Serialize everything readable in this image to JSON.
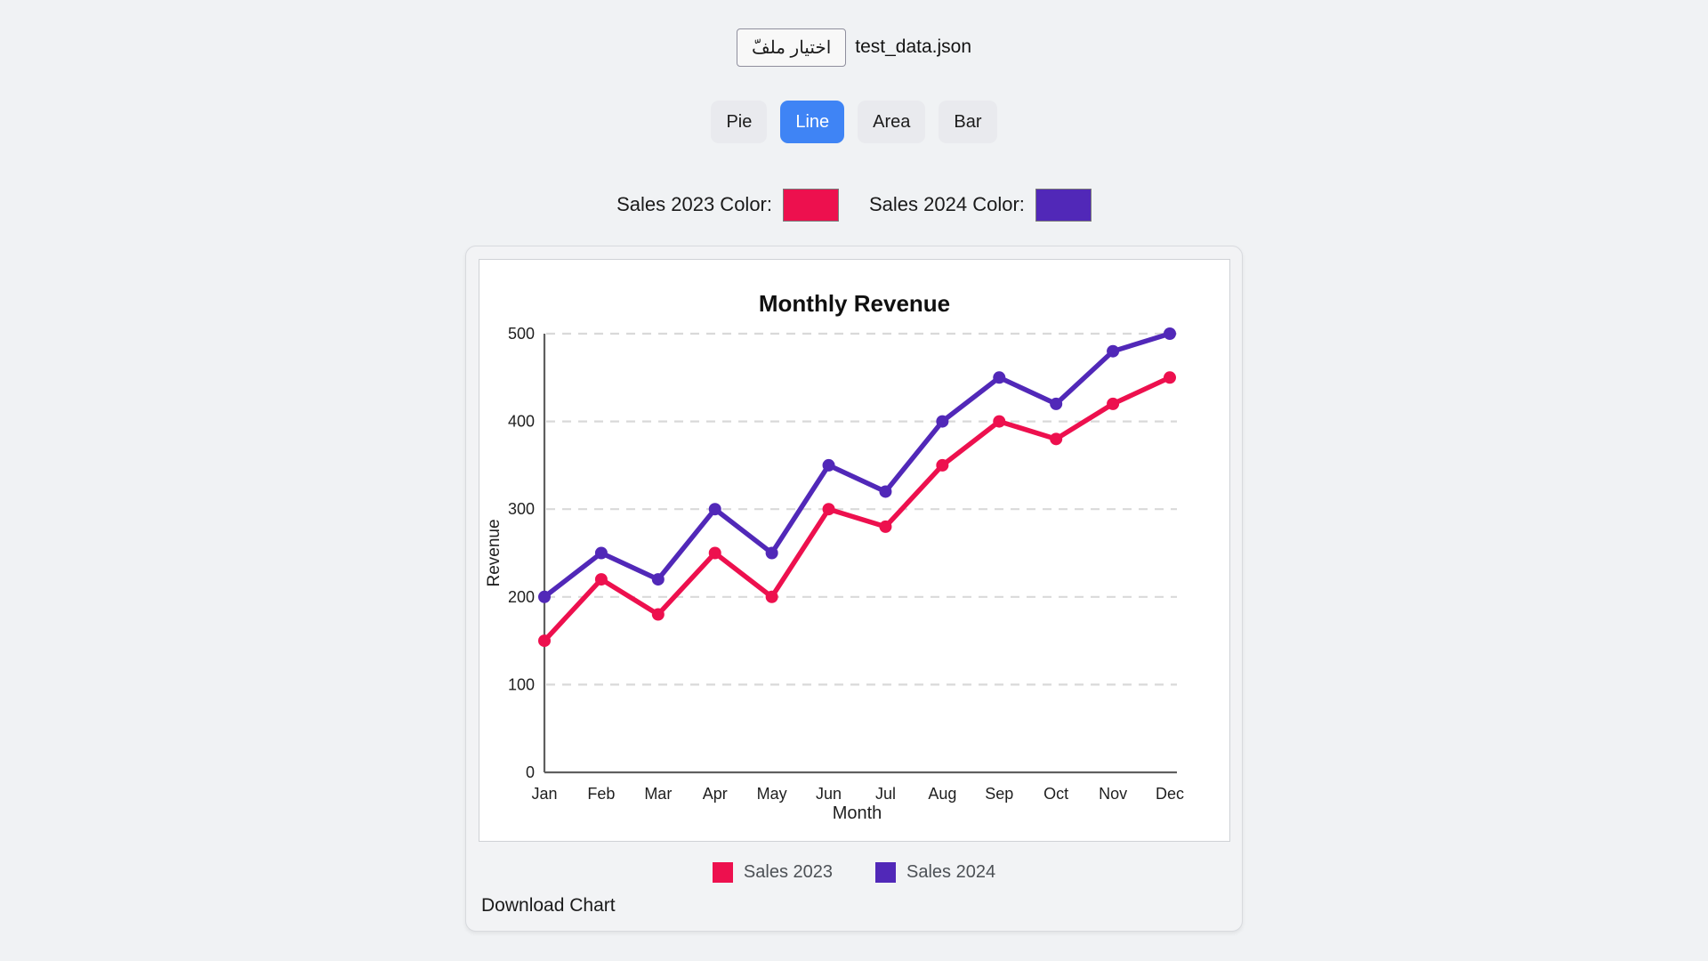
{
  "ui_colors": {
    "accent_blue": "#3F84F5",
    "button_gray": "#E9EAEE",
    "page_background": "#F0F2F4"
  },
  "file_input": {
    "button_label": "اختيار ملفّ",
    "filename": "test_data.json"
  },
  "chart_type_buttons": [
    {
      "label": "Pie",
      "active": false
    },
    {
      "label": "Line",
      "active": true
    },
    {
      "label": "Area",
      "active": false
    },
    {
      "label": "Bar",
      "active": false
    }
  ],
  "color_controls": [
    {
      "label": "Sales 2023 Color:",
      "color": "#ED104E"
    },
    {
      "label": "Sales 2024 Color:",
      "color": "#5128B8"
    }
  ],
  "download_label": "Download Chart",
  "chart_data": {
    "type": "line",
    "title": "Monthly Revenue",
    "xlabel": "Month",
    "ylabel": "Revenue",
    "categories": [
      "Jan",
      "Feb",
      "Mar",
      "Apr",
      "May",
      "Jun",
      "Jul",
      "Aug",
      "Sep",
      "Oct",
      "Nov",
      "Dec"
    ],
    "series": [
      {
        "name": "Sales 2023",
        "color": "#ED104E",
        "values": [
          150,
          220,
          180,
          250,
          200,
          300,
          280,
          350,
          400,
          380,
          420,
          450
        ]
      },
      {
        "name": "Sales 2024",
        "color": "#5128B8",
        "values": [
          200,
          250,
          220,
          300,
          250,
          350,
          320,
          400,
          450,
          420,
          480,
          500
        ]
      }
    ],
    "ylim": [
      0,
      500
    ],
    "yticks": [
      0,
      100,
      200,
      300,
      400,
      500
    ],
    "grid": "dashed-horizontal",
    "legend_position": "bottom"
  }
}
